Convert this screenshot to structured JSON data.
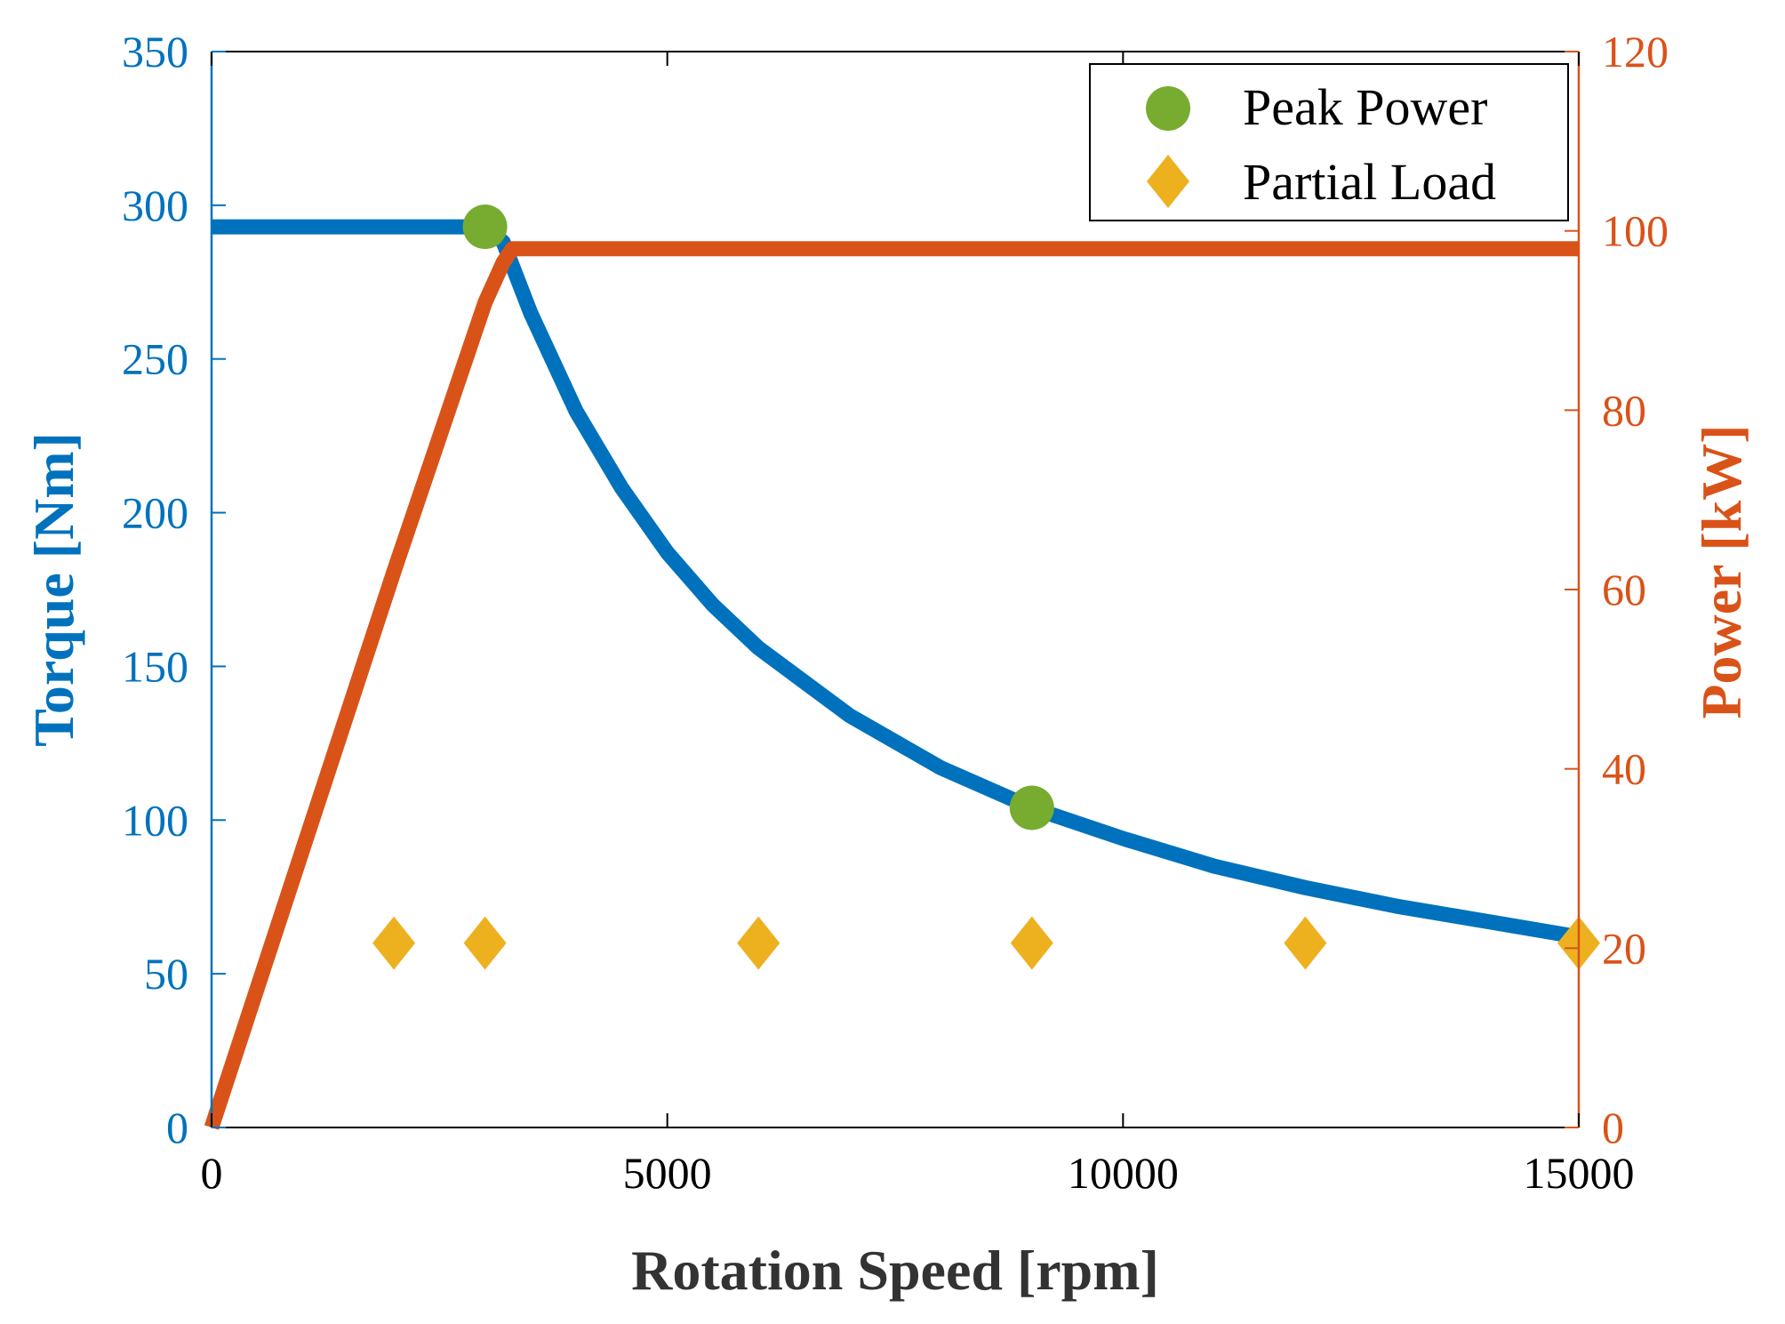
{
  "chart_data": {
    "type": "line",
    "title": "",
    "xlabel": "Rotation Speed [rpm]",
    "ylabel_left": "Torque [Nm]",
    "ylabel_right": "Power [kW]",
    "xlim": [
      0,
      15000
    ],
    "ylim_left": [
      0,
      350
    ],
    "ylim_right": [
      0,
      120
    ],
    "xticks": [
      0,
      5000,
      10000,
      15000
    ],
    "yticks_left": [
      0,
      50,
      100,
      150,
      200,
      250,
      300,
      350
    ],
    "yticks_right": [
      0,
      20,
      40,
      60,
      80,
      100,
      120
    ],
    "grid": false,
    "legend_position": "top-right",
    "colors": {
      "torque": "#0072BD",
      "power": "#D95319",
      "peak": "#77AC30",
      "partial": "#EDB120",
      "axis": "#000000"
    },
    "series": [
      {
        "name": "Torque",
        "axis": "left",
        "x": [
          0,
          3000,
          3200,
          3500,
          4000,
          4500,
          5000,
          5500,
          6000,
          7000,
          8000,
          9000,
          10000,
          11000,
          12000,
          13000,
          14000,
          15000
        ],
        "values": [
          293,
          293,
          288,
          265,
          233,
          208,
          187,
          170,
          156,
          134,
          117,
          104,
          94,
          85,
          78,
          72,
          67,
          62
        ]
      },
      {
        "name": "Power",
        "axis": "right",
        "x": [
          0,
          1000,
          2000,
          3000,
          3200,
          3300,
          15000
        ],
        "values": [
          0,
          31,
          62,
          92,
          96.5,
          98,
          98
        ]
      },
      {
        "name": "Peak Power",
        "axis": "left",
        "marker": "circle",
        "x": [
          3000,
          9000
        ],
        "values": [
          293,
          104
        ]
      },
      {
        "name": "Partial Load",
        "axis": "left",
        "marker": "diamond",
        "x": [
          2000,
          3000,
          6000,
          9000,
          12000,
          15000
        ],
        "values": [
          60,
          60,
          60,
          60,
          60,
          60
        ]
      }
    ],
    "legend": [
      "Peak Power",
      "Partial Load"
    ]
  }
}
